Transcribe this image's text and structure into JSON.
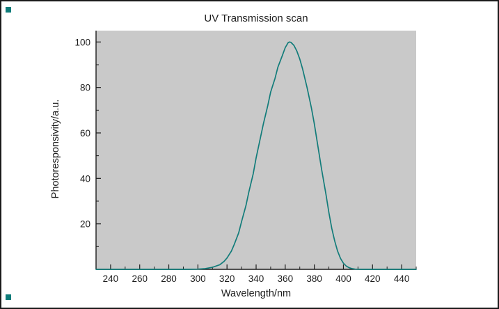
{
  "chart_data": {
    "type": "line",
    "title": "UV Transmission scan",
    "xlabel": "Wavelength/nm",
    "ylabel": "Photoresponsivity/a.u.",
    "xlim": [
      230,
      450
    ],
    "ylim": [
      0,
      105
    ],
    "x_major_ticks": [
      240,
      260,
      280,
      300,
      320,
      340,
      360,
      380,
      400,
      420,
      440
    ],
    "x_minor_ticks": [
      230,
      250,
      270,
      290,
      310,
      330,
      350,
      370,
      390,
      410,
      430,
      450
    ],
    "y_major_ticks": [
      20,
      40,
      60,
      80,
      100
    ],
    "y_minor_ticks": [
      10,
      30,
      50,
      70,
      90
    ],
    "grid": false,
    "legend": "none",
    "plot_bg_color": "#c9c9c9",
    "line_color": "#127c7a",
    "axis_color": "#1c1c1c",
    "series": [
      {
        "name": "photoresponsivity",
        "points": [
          [
            230,
            0
          ],
          [
            290,
            0
          ],
          [
            295,
            0.05
          ],
          [
            300,
            0.1
          ],
          [
            305,
            0.3
          ],
          [
            310,
            0.9
          ],
          [
            315,
            2
          ],
          [
            318,
            3.5
          ],
          [
            320,
            5
          ],
          [
            323,
            8
          ],
          [
            325,
            11
          ],
          [
            328,
            16
          ],
          [
            330,
            21
          ],
          [
            333,
            28
          ],
          [
            335,
            34
          ],
          [
            338,
            42
          ],
          [
            340,
            49
          ],
          [
            343,
            58
          ],
          [
            345,
            64
          ],
          [
            348,
            72
          ],
          [
            350,
            78
          ],
          [
            353,
            84
          ],
          [
            355,
            89
          ],
          [
            358,
            94
          ],
          [
            360,
            97.5
          ],
          [
            362,
            99.7
          ],
          [
            363,
            100
          ],
          [
            364,
            99.8
          ],
          [
            366,
            98.5
          ],
          [
            368,
            96
          ],
          [
            370,
            92.5
          ],
          [
            372,
            88
          ],
          [
            375,
            80
          ],
          [
            378,
            71
          ],
          [
            380,
            64
          ],
          [
            382,
            56
          ],
          [
            385,
            44
          ],
          [
            388,
            33
          ],
          [
            390,
            25
          ],
          [
            392,
            18
          ],
          [
            394,
            12.5
          ],
          [
            396,
            8
          ],
          [
            398,
            4.8
          ],
          [
            400,
            2.7
          ],
          [
            402,
            1.4
          ],
          [
            404,
            0.7
          ],
          [
            406,
            0.3
          ],
          [
            408,
            0.1
          ],
          [
            412,
            0
          ],
          [
            450,
            0
          ]
        ]
      }
    ]
  },
  "markers": {
    "selection_handle_color": "#0e7c7a"
  }
}
